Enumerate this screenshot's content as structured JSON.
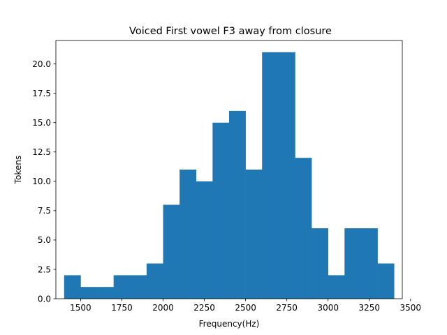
{
  "chart_data": {
    "type": "bar",
    "title": "Voiced First vowel F3 away from closure",
    "xlabel": "Frequency(Hz)",
    "ylabel": "Tokens",
    "bin_edges": [
      1400,
      1500,
      1600,
      1700,
      1800,
      1900,
      2000,
      2100,
      2200,
      2300,
      2400,
      2500,
      2600,
      2700,
      2800,
      2900,
      3000,
      3100,
      3200,
      3300,
      3400
    ],
    "values": [
      2,
      1,
      1,
      2,
      2,
      3,
      8,
      11,
      10,
      15,
      16,
      11,
      21,
      21,
      12,
      6,
      2,
      6,
      6,
      3
    ],
    "xlim": [
      1350,
      3450
    ],
    "ylim": [
      0,
      22
    ],
    "xticks": [
      1500,
      1750,
      2000,
      2250,
      2500,
      2750,
      3000,
      3250,
      3500
    ],
    "xtick_labels": [
      "1500",
      "1750",
      "2000",
      "2250",
      "2500",
      "2750",
      "3000",
      "3250",
      "3500"
    ],
    "yticks": [
      0,
      2.5,
      5,
      7.5,
      10,
      12.5,
      15,
      17.5,
      20
    ],
    "ytick_labels": [
      "0.0",
      "2.5",
      "5.0",
      "7.5",
      "10.0",
      "12.5",
      "15.0",
      "17.5",
      "20.0"
    ],
    "grid": false,
    "bar_color": "#1f77b4"
  }
}
